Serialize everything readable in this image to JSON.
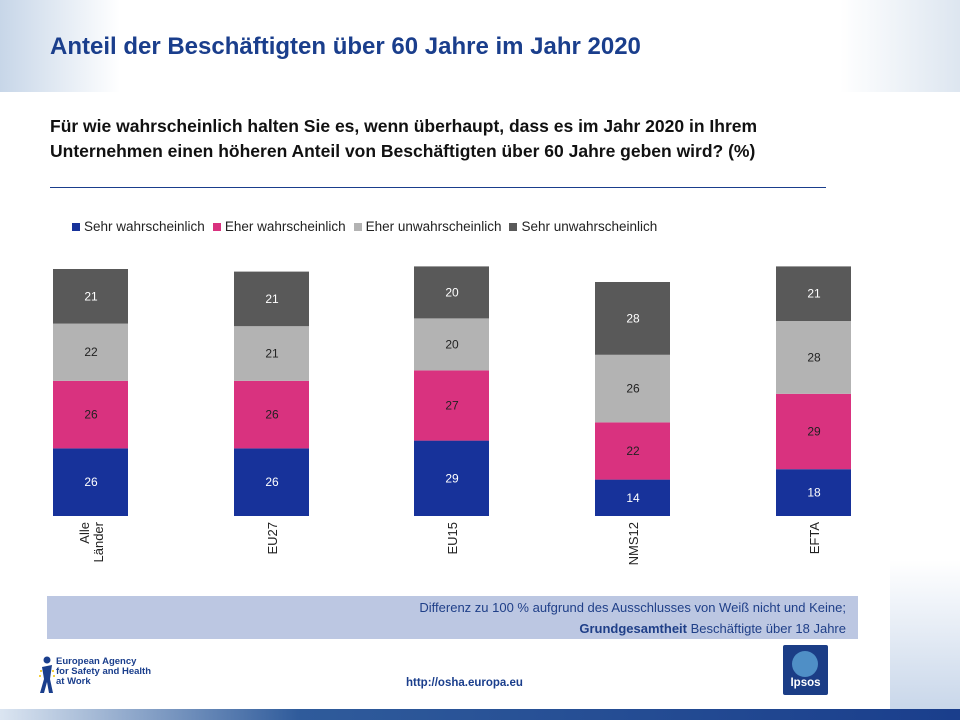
{
  "title": "Anteil der Beschäftigten über 60 Jahre im Jahr 2020",
  "question": "Für wie wahrscheinlich halten Sie es, wenn überhaupt, dass es im Jahr 2020 in Ihrem Unternehmen einen höheren Anteil von Beschäftigten über 60 Jahre geben wird?   (%)",
  "note": {
    "line1": "Differenz zu 100 % aufgrund des Ausschlusses von Weiß nicht und Keine;",
    "line2_bold": "Grundgesamtheit",
    "line2_rest": " Beschäftigte über 18 Jahre"
  },
  "logo": {
    "line1": "European Agency",
    "line2": "for Safety and Health",
    "line3": "at Work"
  },
  "url": "http://osha.europa.eu",
  "ipsos": "Ipsos",
  "colors": {
    "title": "#1a3e8c",
    "series": [
      "#17329a",
      "#d9327f",
      "#b3b3b3",
      "#595959"
    ]
  },
  "chart_data": {
    "type": "bar",
    "stacked": true,
    "categories": [
      "Alle Länder",
      "EU27",
      "EU15",
      "NMS12",
      "EFTA"
    ],
    "series": [
      {
        "name": "Sehr wahrscheinlich",
        "values": [
          26,
          26,
          29,
          14,
          18
        ]
      },
      {
        "name": "Eher wahrscheinlich",
        "values": [
          26,
          26,
          27,
          22,
          29
        ]
      },
      {
        "name": "Eher unwahrscheinlich",
        "values": [
          22,
          21,
          20,
          26,
          28
        ]
      },
      {
        "name": "Sehr unwahrscheinlich",
        "values": [
          21,
          21,
          20,
          28,
          21
        ]
      }
    ],
    "legend_position": "top",
    "grid": false
  }
}
